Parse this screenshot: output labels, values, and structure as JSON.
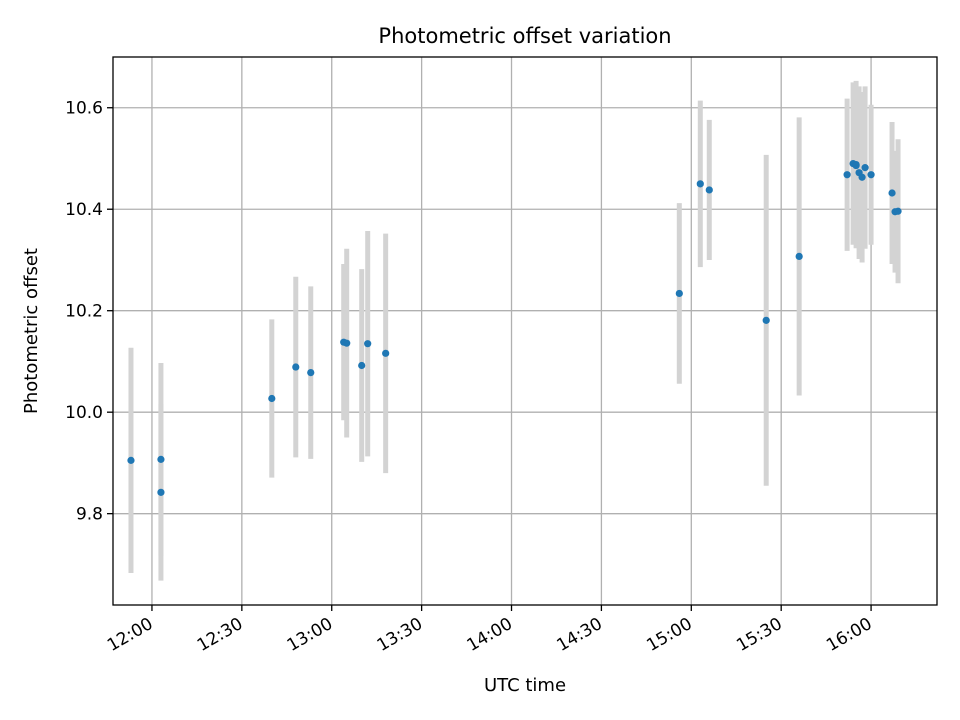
{
  "chart_data": {
    "type": "scatter",
    "title": "Photometric offset variation",
    "xlabel": "UTC time",
    "ylabel": "Photometric offset",
    "xlim": [
      "11:47",
      "16:22"
    ],
    "ylim": [
      9.62,
      10.7
    ],
    "grid": true,
    "x_ticks": [
      "12:00",
      "12:30",
      "13:00",
      "13:30",
      "14:00",
      "14:30",
      "15:00",
      "15:30",
      "16:00"
    ],
    "y_ticks": [
      9.8,
      10.0,
      10.2,
      10.4,
      10.6
    ],
    "point_color": "#1f77b4",
    "errorbar_color": "#d3d3d3",
    "series": [
      {
        "points": [
          {
            "t": "11:53",
            "y": 9.905,
            "err": 0.222
          },
          {
            "t": "12:03",
            "y": 9.842,
            "err": 0.174
          },
          {
            "t": "12:03",
            "y": 9.907,
            "err": 0.19
          },
          {
            "t": "12:40",
            "y": 10.027,
            "err": 0.156
          },
          {
            "t": "12:48",
            "y": 10.089,
            "err": 0.178
          },
          {
            "t": "12:53",
            "y": 10.078,
            "err": 0.17
          },
          {
            "t": "13:04",
            "y": 10.138,
            "err": 0.154
          },
          {
            "t": "13:05",
            "y": 10.136,
            "err": 0.186
          },
          {
            "t": "13:10",
            "y": 10.092,
            "err": 0.19
          },
          {
            "t": "13:12",
            "y": 10.135,
            "err": 0.222
          },
          {
            "t": "13:18",
            "y": 10.116,
            "err": 0.236
          },
          {
            "t": "14:56",
            "y": 10.234,
            "err": 0.178
          },
          {
            "t": "15:03",
            "y": 10.45,
            "err": 0.164
          },
          {
            "t": "15:06",
            "y": 10.438,
            "err": 0.138
          },
          {
            "t": "15:25",
            "y": 10.181,
            "err": 0.326
          },
          {
            "t": "15:36",
            "y": 10.307,
            "err": 0.274
          },
          {
            "t": "15:52",
            "y": 10.468,
            "err": 0.15
          },
          {
            "t": "15:54",
            "y": 10.49,
            "err": 0.16
          },
          {
            "t": "15:55",
            "y": 10.488,
            "err": 0.165
          },
          {
            "t": "15:55",
            "y": 10.486,
            "err": 0.155
          },
          {
            "t": "15:56",
            "y": 10.472,
            "err": 0.17
          },
          {
            "t": "15:57",
            "y": 10.463,
            "err": 0.168
          },
          {
            "t": "15:58",
            "y": 10.482,
            "err": 0.16
          },
          {
            "t": "16:00",
            "y": 10.468,
            "err": 0.138
          },
          {
            "t": "16:07",
            "y": 10.432,
            "err": 0.14
          },
          {
            "t": "16:08",
            "y": 10.395,
            "err": 0.12
          },
          {
            "t": "16:09",
            "y": 10.396,
            "err": 0.142
          }
        ]
      }
    ]
  }
}
